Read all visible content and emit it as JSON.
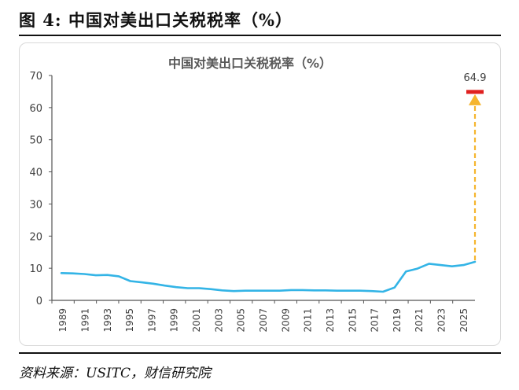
{
  "figure": {
    "title": "图 4:  中国对美出口关税税率（%）",
    "source": "资料来源：USITC，财信研究院"
  },
  "colors": {
    "line": "#33b4e6",
    "arrow": "#f5b52e",
    "marker": "#e0201f",
    "axis": "#555555"
  },
  "chart_data": {
    "type": "line",
    "title": "中国对美出口关税税率（%）",
    "xlabel": "",
    "ylabel": "",
    "ylim": [
      0,
      70
    ],
    "yticks": [
      0,
      10,
      20,
      30,
      40,
      50,
      60,
      70
    ],
    "xlim": [
      1989,
      2025
    ],
    "xticks": [
      "1989",
      "1991",
      "1993",
      "1995",
      "1997",
      "1999",
      "2001",
      "2003",
      "2005",
      "2007",
      "2009",
      "2011",
      "2013",
      "2015",
      "2017",
      "2019",
      "2021",
      "2023",
      "2025"
    ],
    "grid": false,
    "legend": "none",
    "series": [
      {
        "x": [
          1989,
          1990,
          1991,
          1992,
          1993,
          1994,
          1995,
          1996,
          1997,
          1998,
          1999,
          2000,
          2001,
          2002,
          2003,
          2004,
          2005,
          2006,
          2007,
          2008,
          2009,
          2010,
          2011,
          2012,
          2013,
          2014,
          2015,
          2016,
          2017,
          2018,
          2019,
          2020,
          2021,
          2022,
          2023,
          2024,
          2025
        ],
        "y": [
          8.5,
          8.4,
          8.2,
          7.8,
          7.9,
          7.5,
          6.0,
          5.6,
          5.2,
          4.6,
          4.1,
          3.8,
          3.8,
          3.5,
          3.1,
          2.9,
          3.0,
          3.0,
          3.0,
          3.0,
          3.2,
          3.2,
          3.1,
          3.1,
          3.0,
          3.0,
          3.0,
          2.9,
          2.7,
          4.0,
          9.0,
          9.9,
          11.4,
          11.0,
          10.6,
          11.0,
          12.0
        ]
      }
    ],
    "annotation": {
      "x": 2025,
      "value": 64.9,
      "label": "64.9",
      "from": 12.0
    }
  }
}
